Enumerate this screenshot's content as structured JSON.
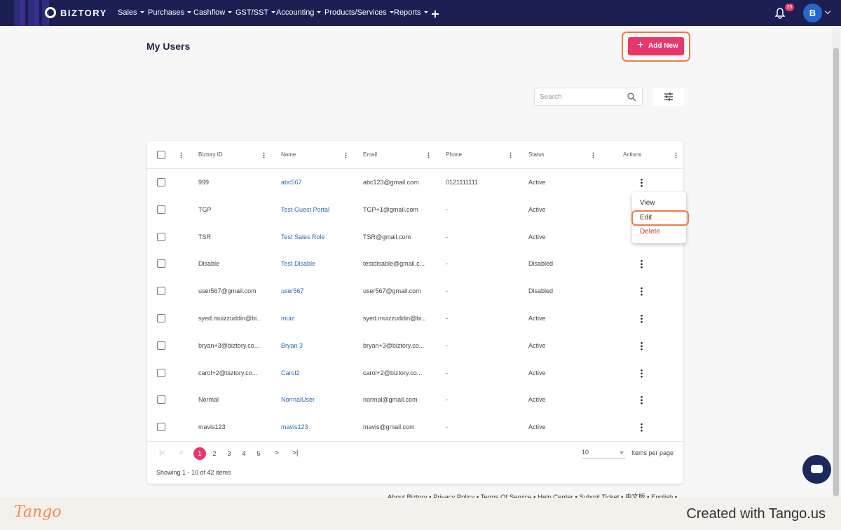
{
  "nav": {
    "brand": "BIZTORY",
    "menu": [
      "Sales",
      "Purchases",
      "Cashflow",
      "GST/SST",
      "Accounting",
      "Products/Services",
      "Reports"
    ],
    "badge": 20,
    "avatar": "B"
  },
  "page": {
    "title": "My Users",
    "add_button": "Add New",
    "search_placeholder": "Search"
  },
  "table": {
    "columns": [
      "Biztory ID",
      "Name",
      "Email",
      "Phone",
      "Status",
      "Actions"
    ],
    "rows": [
      [
        "999",
        "abc567",
        "abc123@gmail.com",
        "0121111111",
        "Active"
      ],
      [
        "TGP",
        "Test Guest Portal",
        "TGP+1@gmail.com",
        "-",
        "Active"
      ],
      [
        "TSR",
        "Test Sales Role",
        "TSR@gmail.com",
        "-",
        "Active"
      ],
      [
        "Disable",
        "Test Disable",
        "testdisable@gmail.c...",
        "-",
        "Disabled"
      ],
      [
        "user567@gmail.com",
        "user567",
        "user567@gmail.com",
        "-",
        "Disabled"
      ],
      [
        "syed.muizzuddin@bi...",
        "muiz",
        "syed.muizzuddin@bi...",
        "-",
        "Active"
      ],
      [
        "bryan+3@biztory.co...",
        "Bryan 3",
        "bryan+3@biztory.co...",
        "-",
        "Active"
      ],
      [
        "carol+2@biztory.co...",
        "Carol2",
        "carol+2@biztory.co...",
        "-",
        "Active"
      ],
      [
        "Normal",
        "NormalUser",
        "normal@gmail.com",
        "-",
        "Active"
      ],
      [
        "mavis123",
        "mavis123",
        "mavis@gmail.com",
        "-",
        "Active"
      ]
    ]
  },
  "menu": [
    "View",
    "Edit",
    "Delete"
  ],
  "pagination": {
    "pages": [
      1,
      2,
      3,
      4,
      5
    ],
    "per_page": 10,
    "per_page_label": "Items per page",
    "summary": "Showing 1 - 10 of 42 items"
  },
  "footer": {
    "text": "About Biztory • Privacy Policy • Terms Of Service • Help Center • Submit Ticket • 中文版 • English •"
  },
  "watermark": {
    "logo": "Tango",
    "text": "Created with Tango.us"
  }
}
